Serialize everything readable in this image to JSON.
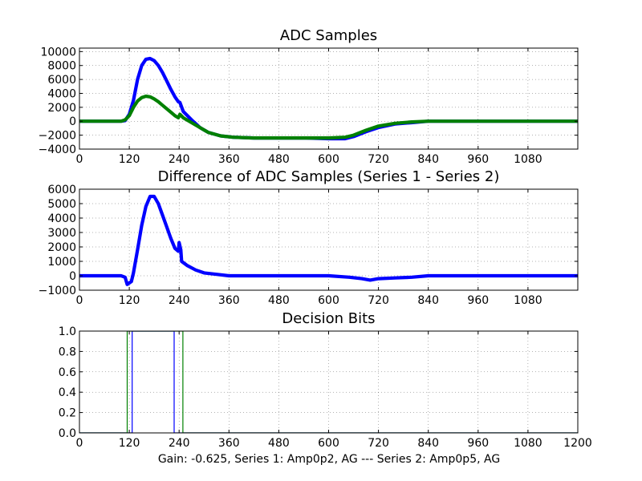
{
  "caption": "Gain: -0.625, Series 1: Amp0p2, AG --- Series 2: Amp0p5, AG",
  "colors": {
    "series1": "#0000ff",
    "series2": "#008000",
    "grid": "#bfbfbf"
  },
  "chart_data": [
    {
      "type": "line",
      "title": "ADC Samples",
      "xlim": [
        0,
        1200
      ],
      "ylim": [
        -4000,
        10500
      ],
      "xticks": [
        0,
        120,
        240,
        360,
        480,
        600,
        720,
        840,
        960,
        1080
      ],
      "xtick_labels": [
        "0",
        "120",
        "240",
        "360",
        "480",
        "600",
        "720",
        "840",
        "960",
        "1080"
      ],
      "yticks": [
        -4000,
        -2000,
        0,
        2000,
        4000,
        6000,
        8000,
        10000
      ],
      "ytick_labels": [
        "−4000",
        "−2000",
        "0",
        "2000",
        "4000",
        "6000",
        "8000",
        "10000"
      ],
      "series": [
        {
          "name": "Series 1",
          "color": "#0000ff",
          "x": [
            0,
            100,
            110,
            120,
            130,
            140,
            150,
            160,
            170,
            180,
            190,
            200,
            210,
            220,
            230,
            238,
            242,
            250,
            270,
            290,
            310,
            340,
            370,
            420,
            480,
            540,
            600,
            640,
            660,
            690,
            720,
            760,
            800,
            840,
            1200
          ],
          "y": [
            0,
            0,
            100,
            1000,
            3000,
            6000,
            8000,
            8900,
            9000,
            8700,
            8000,
            7000,
            5800,
            4600,
            3500,
            2800,
            2700,
            1400,
            200,
            -900,
            -1600,
            -2100,
            -2300,
            -2400,
            -2400,
            -2400,
            -2500,
            -2500,
            -2200,
            -1500,
            -900,
            -400,
            -200,
            0,
            0
          ]
        },
        {
          "name": "Series 2",
          "color": "#008000",
          "x": [
            0,
            100,
            110,
            120,
            130,
            140,
            150,
            160,
            170,
            180,
            190,
            200,
            210,
            220,
            230,
            238,
            242,
            250,
            270,
            290,
            310,
            340,
            370,
            420,
            480,
            540,
            600,
            640,
            660,
            690,
            720,
            760,
            800,
            840,
            1200
          ],
          "y": [
            0,
            0,
            200,
            800,
            2000,
            2900,
            3400,
            3600,
            3500,
            3200,
            2800,
            2300,
            1800,
            1300,
            800,
            500,
            1000,
            500,
            -200,
            -900,
            -1600,
            -2100,
            -2300,
            -2400,
            -2400,
            -2400,
            -2400,
            -2300,
            -2000,
            -1300,
            -700,
            -300,
            -100,
            0,
            0
          ]
        }
      ]
    },
    {
      "type": "line",
      "title": "Difference of ADC Samples (Series 1 - Series 2)",
      "xlim": [
        0,
        1200
      ],
      "ylim": [
        -1000,
        6000
      ],
      "xticks": [
        0,
        120,
        240,
        360,
        480,
        600,
        720,
        840,
        960,
        1080
      ],
      "xtick_labels": [
        "0",
        "120",
        "240",
        "360",
        "480",
        "600",
        "720",
        "840",
        "960",
        "1080"
      ],
      "yticks": [
        -1000,
        0,
        1000,
        2000,
        3000,
        4000,
        5000,
        6000
      ],
      "ytick_labels": [
        "−1000",
        "0",
        "1000",
        "2000",
        "3000",
        "4000",
        "5000",
        "6000"
      ],
      "series": [
        {
          "name": "Difference",
          "color": "#0000ff",
          "x": [
            0,
            100,
            110,
            115,
            120,
            125,
            130,
            140,
            150,
            160,
            170,
            180,
            190,
            200,
            210,
            220,
            230,
            238,
            240,
            244,
            246,
            260,
            280,
            300,
            330,
            360,
            600,
            650,
            680,
            700,
            720,
            760,
            800,
            840,
            1200
          ],
          "y": [
            0,
            0,
            -100,
            -600,
            -500,
            -400,
            200,
            1800,
            3500,
            4800,
            5500,
            5500,
            5000,
            4200,
            3400,
            2600,
            1900,
            1700,
            2300,
            1800,
            1000,
            700,
            400,
            200,
            100,
            0,
            0,
            -100,
            -200,
            -300,
            -200,
            -150,
            -100,
            0,
            0
          ]
        }
      ]
    },
    {
      "type": "line",
      "title": "Decision Bits",
      "xlim": [
        0,
        1200
      ],
      "ylim": [
        0,
        1
      ],
      "xticks": [
        0,
        120,
        240,
        360,
        480,
        600,
        720,
        840,
        960,
        1080,
        1200
      ],
      "xtick_labels": [
        "0",
        "120",
        "240",
        "360",
        "480",
        "600",
        "720",
        "840",
        "960",
        "1080",
        "1200"
      ],
      "yticks": [
        0,
        0.2,
        0.4,
        0.6,
        0.8,
        1.0
      ],
      "ytick_labels": [
        "0.0",
        "0.2",
        "0.4",
        "0.6",
        "0.8",
        "1.0"
      ],
      "series": [
        {
          "name": "Series 1",
          "color": "#0000ff",
          "x": [
            0,
            127,
            127,
            137,
            137,
            228,
            228,
            242,
            242,
            1200
          ],
          "y": [
            0,
            0,
            1,
            1,
            1,
            1,
            0,
            0,
            0,
            0
          ]
        },
        {
          "name": "Series 2",
          "color": "#008000",
          "x": [
            0,
            115,
            115,
            249,
            249,
            1200
          ],
          "y": [
            0,
            0,
            1,
            1,
            0,
            0
          ]
        }
      ]
    }
  ]
}
